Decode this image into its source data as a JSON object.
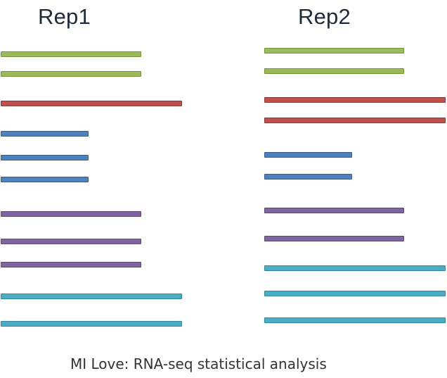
{
  "titles": {
    "rep1": "Rep1",
    "rep2": "Rep2"
  },
  "caption": "MI Love: RNA-seq statistical analysis",
  "colors": {
    "green": {
      "fill": "#9bbb59",
      "border": "#76923c"
    },
    "red": {
      "fill": "#c0504d",
      "border": "#8c3836"
    },
    "blue": {
      "fill": "#4f81bd",
      "border": "#385d8a"
    },
    "purple": {
      "fill": "#8064a2",
      "border": "#5c4776"
    },
    "cyan": {
      "fill": "#4bacc6",
      "border": "#31859c"
    }
  },
  "replicates": [
    {
      "id": "rep1",
      "bars": [
        {
          "color": "green"
        },
        {
          "color": "green"
        },
        {
          "color": "red"
        },
        {
          "color": "blue"
        },
        {
          "color": "blue"
        },
        {
          "color": "blue"
        },
        {
          "color": "purple"
        },
        {
          "color": "purple"
        },
        {
          "color": "purple"
        },
        {
          "color": "cyan"
        },
        {
          "color": "cyan"
        }
      ]
    },
    {
      "id": "rep2",
      "bars": [
        {
          "color": "green"
        },
        {
          "color": "green"
        },
        {
          "color": "red"
        },
        {
          "color": "red"
        },
        {
          "color": "blue"
        },
        {
          "color": "blue"
        },
        {
          "color": "purple"
        },
        {
          "color": "purple"
        },
        {
          "color": "cyan"
        },
        {
          "color": "cyan"
        },
        {
          "color": "cyan"
        }
      ]
    }
  ]
}
